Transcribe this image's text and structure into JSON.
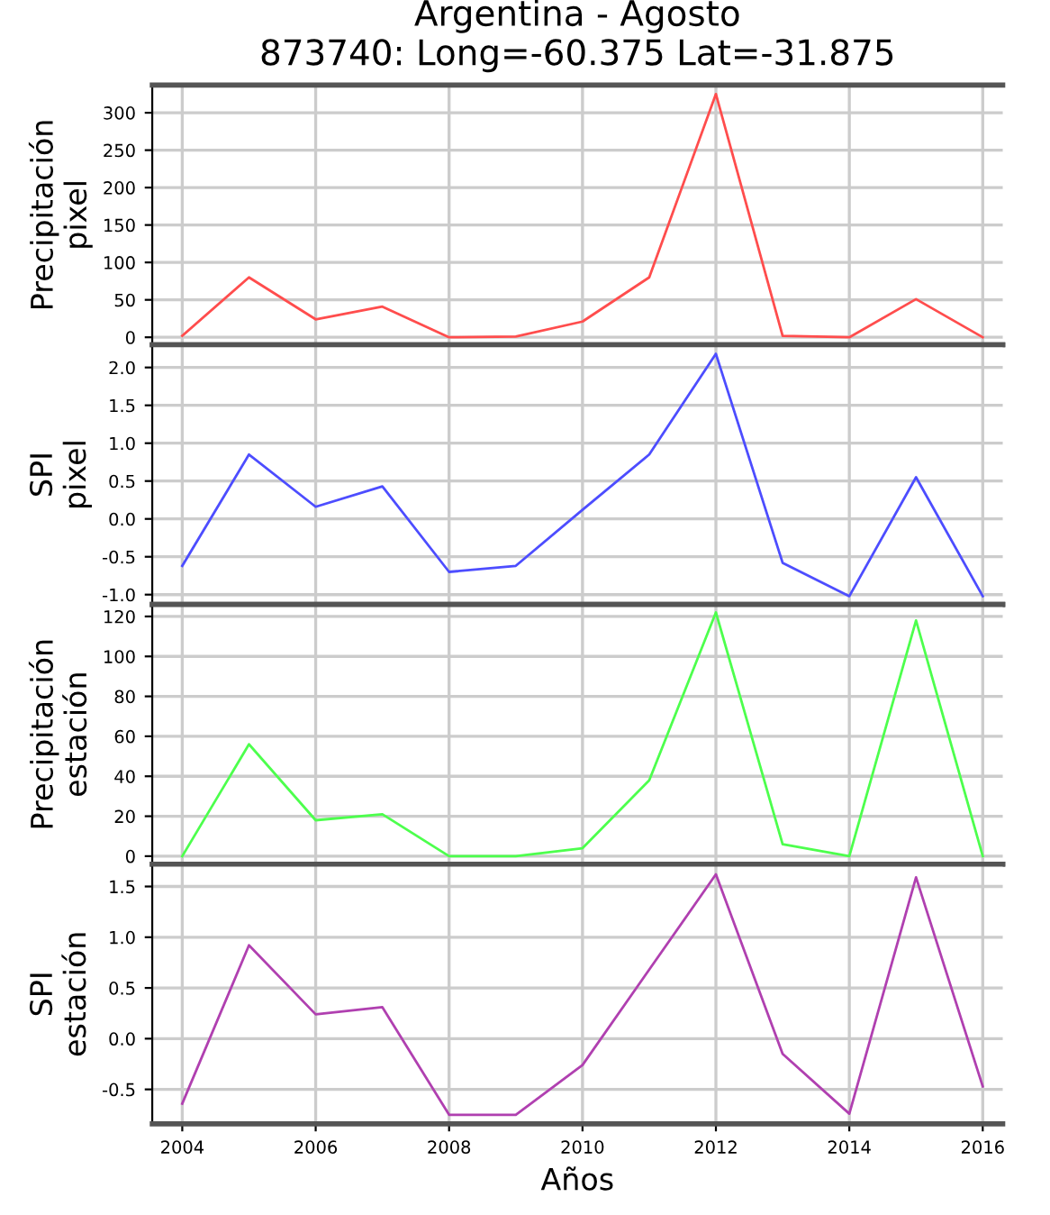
{
  "chart_data": [
    {
      "type": "line",
      "title": "Argentina - Agosto\n873740: Long=-60.375 Lat=-31.875",
      "ylabel": "Precipitación\npixel",
      "x": [
        2004,
        2005,
        2006,
        2007,
        2008,
        2009,
        2010,
        2011,
        2012,
        2013,
        2014,
        2015,
        2016
      ],
      "series": [
        {
          "color": "#ff4d4d",
          "values": [
            2,
            80,
            24,
            41,
            0,
            1,
            21,
            80,
            325,
            2,
            0,
            51,
            0
          ]
        }
      ],
      "xlim": [
        2003.55,
        2016.3
      ],
      "xticks": [
        2004,
        2006,
        2008,
        2010,
        2012,
        2014,
        2016
      ],
      "ylim": [
        -10,
        337
      ],
      "yticks": [
        0,
        50,
        100,
        150,
        200,
        250,
        300
      ],
      "grid": true,
      "tick_labels": "y"
    },
    {
      "type": "line",
      "ylabel": "SPI\npixel",
      "x": [
        2004,
        2005,
        2006,
        2007,
        2008,
        2009,
        2010,
        2011,
        2012,
        2013,
        2014,
        2015,
        2016
      ],
      "series": [
        {
          "color": "#4d4dff",
          "values": [
            -0.62,
            0.85,
            0.16,
            0.43,
            -0.7,
            -0.62,
            0.12,
            0.85,
            2.18,
            -0.58,
            -1.02,
            0.55,
            -1.02
          ]
        }
      ],
      "xlim": [
        2003.55,
        2016.3
      ],
      "xticks": [
        2004,
        2006,
        2008,
        2010,
        2012,
        2014,
        2016
      ],
      "ylim": [
        -1.13,
        2.3
      ],
      "yticks": [
        {
          "value": -1,
          "label": "-1.0"
        },
        {
          "value": -0.5,
          "label": "-0.5"
        },
        {
          "value": 0,
          "label": "0.0"
        },
        {
          "value": 0.5,
          "label": "0.5"
        },
        {
          "value": 1,
          "label": "1.0"
        },
        {
          "value": 1.5,
          "label": "1.5"
        },
        {
          "value": 2,
          "label": "2.0"
        }
      ],
      "grid": true,
      "tick_labels": "y"
    },
    {
      "type": "line",
      "ylabel": "Precipitación\nestación",
      "x": [
        2004,
        2005,
        2006,
        2007,
        2008,
        2009,
        2010,
        2011,
        2012,
        2013,
        2014,
        2015,
        2016
      ],
      "series": [
        {
          "color": "#4dff4d",
          "values": [
            0,
            56,
            18,
            21,
            0,
            0,
            4,
            38,
            122,
            6,
            0,
            118,
            0
          ]
        }
      ],
      "xlim": [
        2003.55,
        2016.3
      ],
      "xticks": [
        2004,
        2006,
        2008,
        2010,
        2012,
        2014,
        2016
      ],
      "ylim": [
        -4,
        126
      ],
      "yticks": [
        0,
        20,
        40,
        60,
        80,
        100,
        120
      ],
      "grid": true,
      "tick_labels": "y"
    },
    {
      "type": "line",
      "ylabel": "SPI\nestación",
      "xlabel": "Años",
      "x": [
        2004,
        2005,
        2006,
        2007,
        2008,
        2009,
        2010,
        2011,
        2012,
        2013,
        2014,
        2015,
        2016
      ],
      "series": [
        {
          "color": "#b040b0",
          "values": [
            -0.64,
            0.92,
            0.24,
            0.31,
            -0.75,
            -0.75,
            -0.26,
            0.68,
            1.62,
            -0.15,
            -0.74,
            1.59,
            -0.47
          ]
        }
      ],
      "xlim": [
        2003.55,
        2016.3
      ],
      "xticks": [
        2004,
        2006,
        2008,
        2010,
        2012,
        2014,
        2016
      ],
      "ylim": [
        -0.84,
        1.72
      ],
      "yticks": [
        {
          "value": -0.5,
          "label": "-0.5"
        },
        {
          "value": 0,
          "label": "0.0"
        },
        {
          "value": 0.5,
          "label": "0.5"
        },
        {
          "value": 1,
          "label": "1.0"
        },
        {
          "value": 1.5,
          "label": "1.5"
        }
      ],
      "grid": true
    }
  ]
}
